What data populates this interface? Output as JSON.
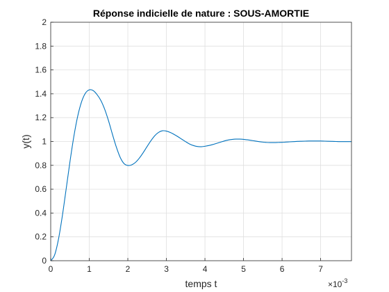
{
  "chart_data": {
    "type": "line",
    "title": "Réponse indicielle de nature : SOUS-AMORTIE",
    "xlabel": "temps t",
    "ylabel": "y(t)",
    "x_exponent": {
      "base": "×10",
      "power": "-3"
    },
    "xlim": [
      0,
      0.0078
    ],
    "ylim": [
      0,
      2
    ],
    "x_ticks": [
      0,
      0.001,
      0.002,
      0.003,
      0.004,
      0.005,
      0.006,
      0.007
    ],
    "x_tick_labels": [
      "0",
      "1",
      "2",
      "3",
      "4",
      "5",
      "6",
      "7"
    ],
    "y_ticks": [
      0,
      0.2,
      0.4,
      0.6,
      0.8,
      1,
      1.2,
      1.4,
      1.6,
      1.8,
      2
    ],
    "y_tick_labels": [
      "0",
      "0.2",
      "0.4",
      "0.6",
      "0.8",
      "1",
      "1.2",
      "1.4",
      "1.6",
      "1.8",
      "2"
    ],
    "grid": true,
    "line_color": "#0072BD",
    "series": [
      {
        "x": [
          0,
          0.0001,
          0.0002,
          0.0003,
          0.0004,
          0.0005,
          0.0006,
          0.0007,
          0.0008,
          0.0009,
          0.001,
          0.0011,
          0.0012,
          0.0013,
          0.0014,
          0.0015,
          0.0016,
          0.0017,
          0.0018,
          0.0019,
          0.002,
          0.0021,
          0.0022,
          0.0023,
          0.0024,
          0.0025,
          0.0026,
          0.0027,
          0.0028,
          0.0029,
          0.003,
          0.0031,
          0.0032,
          0.0033,
          0.0034,
          0.0035,
          0.0036,
          0.0037,
          0.0038,
          0.0039,
          0.004,
          0.0041,
          0.0042,
          0.0043,
          0.0044,
          0.0045,
          0.0046,
          0.0047,
          0.0048,
          0.0049,
          0.005,
          0.0051,
          0.0052,
          0.0053,
          0.0054,
          0.0055,
          0.0056,
          0.0057,
          0.0058,
          0.0059,
          0.006,
          0.0061,
          0.0062,
          0.0063,
          0.0064,
          0.0065,
          0.0066,
          0.0067,
          0.0068,
          0.0069,
          0.007,
          0.0071,
          0.0072,
          0.0073,
          0.0074,
          0.0075,
          0.0076,
          0.0077,
          0.0078
        ],
        "y": [
          0,
          0.047,
          0.178,
          0.372,
          0.6,
          0.832,
          1.042,
          1.212,
          1.333,
          1.405,
          1.433,
          1.427,
          1.394,
          1.344,
          1.27,
          1.173,
          1.061,
          0.955,
          0.868,
          0.815,
          0.799,
          0.804,
          0.825,
          0.861,
          0.907,
          0.958,
          1.007,
          1.049,
          1.077,
          1.09,
          1.087,
          1.076,
          1.059,
          1.04,
          1.019,
          0.998,
          0.979,
          0.966,
          0.958,
          0.956,
          0.96,
          0.966,
          0.974,
          0.984,
          0.994,
          1.004,
          1.012,
          1.017,
          1.02,
          1.02,
          1.018,
          1.014,
          1.009,
          1.004,
          0.999,
          0.995,
          0.992,
          0.991,
          0.991,
          0.992,
          0.993,
          0.995,
          0.997,
          0.999,
          1.001,
          1.002,
          1.003,
          1.004,
          1.004,
          1.004,
          1.004,
          1.003,
          1.002,
          1.001,
          1.0,
          0.999,
          0.999,
          0.999,
          0.999
        ]
      }
    ]
  }
}
